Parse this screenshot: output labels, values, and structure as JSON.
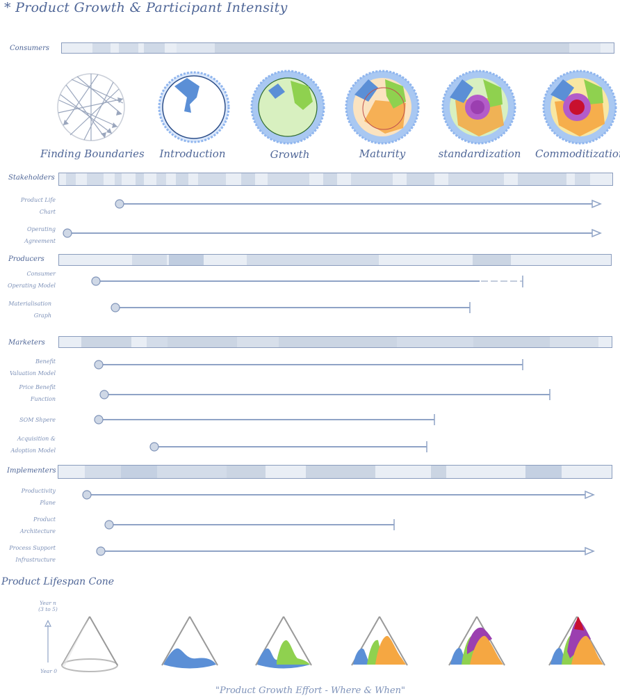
{
  "title": "* Product Growth & Participant Intensity",
  "sections": {
    "consumers": "Consumers",
    "stakeholders": "Stakeholders",
    "producers": "Producers",
    "marketers": "Marketers",
    "implementers": "Implementers"
  },
  "stages": [
    "Finding Boundaries",
    "Introduction",
    "Growth",
    "Maturity",
    "standardization",
    "Commoditization"
  ],
  "rows": {
    "product_life_chart": [
      "Product Life",
      "Chart"
    ],
    "operating_agreement": [
      "Operating",
      "Agreement"
    ],
    "consumer_operating_model": [
      "Consumer",
      "Operating Model"
    ],
    "materialisation_graph": [
      "Materialisation",
      "Graph"
    ],
    "benefit_valuation_model": [
      "Benefit",
      "Valuation Model"
    ],
    "price_benefit_function": [
      "Price Benefit",
      "Function"
    ],
    "som_shpere": [
      "SOM Shpere"
    ],
    "acquisition_adoption_model": [
      "Acquisition &",
      "Adoption Model"
    ],
    "productivity_plane": [
      "Productivity",
      "Plane"
    ],
    "product_architecture": [
      "Product",
      "Architecture"
    ],
    "process_support_infrastructure": [
      "Process Support",
      "Infrastructure"
    ]
  },
  "cone_section": {
    "title": "Product Lifespan Cone",
    "axis_top": [
      "Year n",
      "(3 to 5)"
    ],
    "axis_bottom": "Year 0",
    "caption": "\"Product Growth Effort - Where & When\""
  },
  "colors": {
    "ink": "#4f6697",
    "line": "#8a9cbd",
    "blue": "#5b8fd6",
    "green": "#8fd14f",
    "orange": "#f5a742",
    "purple": "#9b3fb0",
    "red": "#c8102e"
  }
}
